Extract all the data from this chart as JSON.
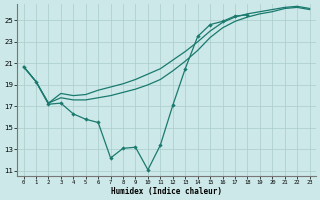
{
  "bg_color": "#cce8e8",
  "grid_color": "#aacccc",
  "line_color": "#1a7a6e",
  "xlabel": "Humidex (Indice chaleur)",
  "xlim": [
    -0.5,
    23.5
  ],
  "ylim": [
    10.5,
    26.5
  ],
  "xticks": [
    0,
    1,
    2,
    3,
    4,
    5,
    6,
    7,
    8,
    9,
    10,
    11,
    12,
    13,
    14,
    15,
    16,
    17,
    18,
    19,
    20,
    21,
    22,
    23
  ],
  "yticks": [
    11,
    13,
    15,
    17,
    19,
    21,
    23,
    25
  ],
  "main_x": [
    0,
    1,
    2,
    3,
    4,
    5,
    6,
    7,
    8,
    9,
    10,
    11,
    12,
    13,
    14,
    15,
    16,
    17,
    18
  ],
  "main_y": [
    20.7,
    19.3,
    17.2,
    17.3,
    16.3,
    15.8,
    15.5,
    12.2,
    13.1,
    13.2,
    11.1,
    13.4,
    17.1,
    20.5,
    23.5,
    24.6,
    24.9,
    25.4,
    25.5
  ],
  "upper1_x": [
    0,
    1,
    2,
    3,
    4,
    5,
    6,
    7,
    8,
    9,
    10,
    11,
    12,
    13,
    14,
    15,
    16,
    17,
    18,
    19,
    20,
    21,
    22,
    23
  ],
  "upper1_y": [
    20.7,
    19.3,
    17.3,
    17.8,
    17.6,
    17.6,
    17.8,
    18.0,
    18.3,
    18.6,
    19.0,
    19.5,
    20.3,
    21.2,
    22.2,
    23.4,
    24.3,
    24.9,
    25.3,
    25.6,
    25.8,
    26.1,
    26.2,
    26.0
  ],
  "upper2_x": [
    0,
    1,
    2,
    3,
    4,
    5,
    6,
    7,
    8,
    9,
    10,
    11,
    12,
    13,
    14,
    15,
    16,
    17,
    18,
    19,
    20,
    21,
    22,
    23
  ],
  "upper2_y": [
    20.7,
    19.3,
    17.3,
    18.2,
    18.0,
    18.1,
    18.5,
    18.8,
    19.1,
    19.5,
    20.0,
    20.5,
    21.3,
    22.1,
    23.0,
    24.0,
    24.8,
    25.3,
    25.6,
    25.8,
    26.0,
    26.2,
    26.3,
    26.1
  ],
  "linewidth": 0.9,
  "markersize": 2.2
}
